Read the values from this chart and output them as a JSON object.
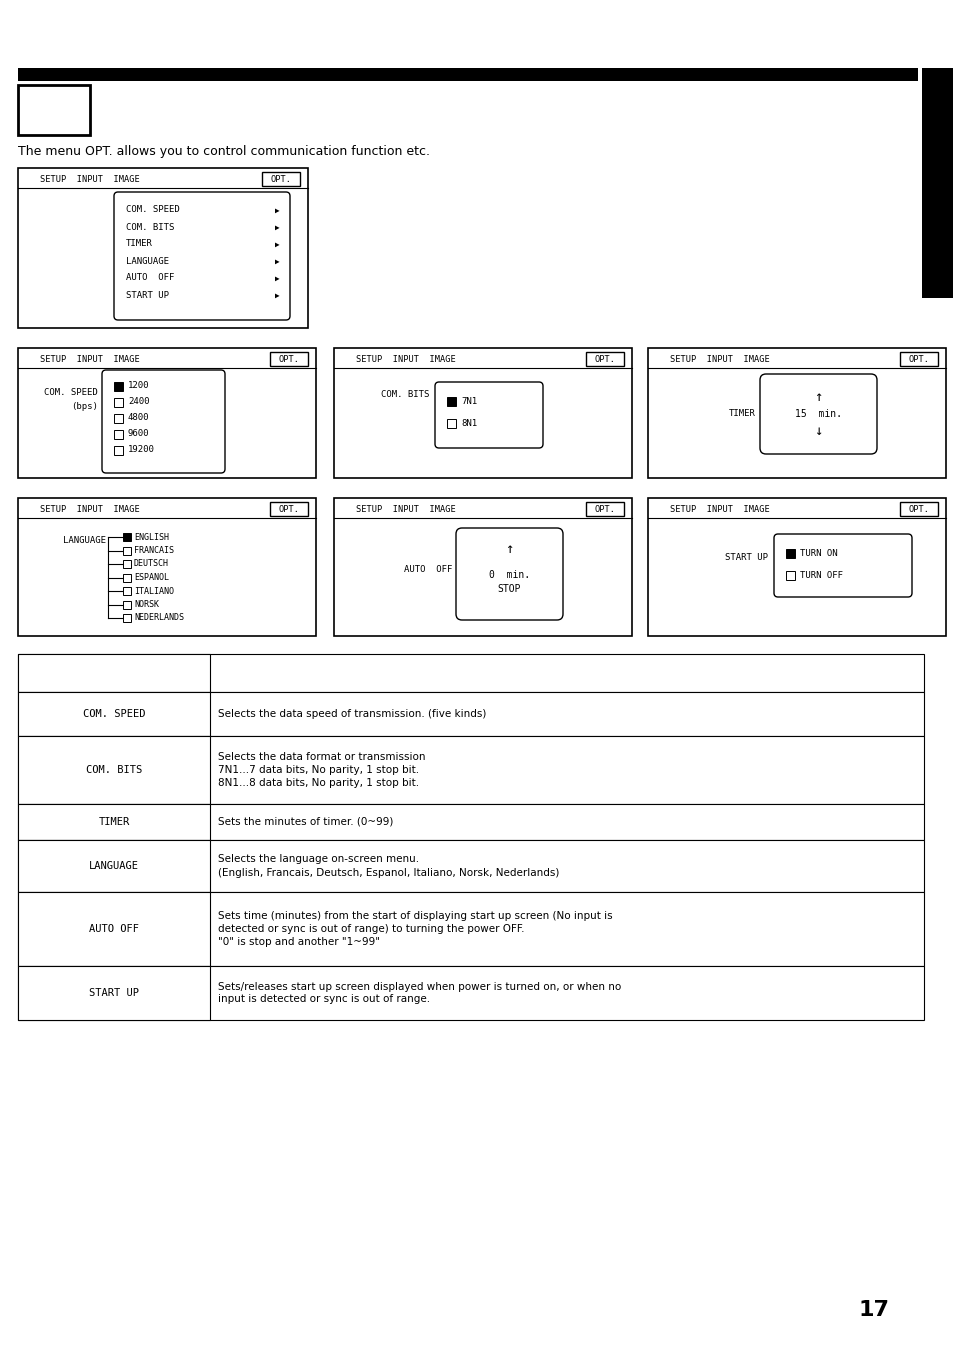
{
  "bg_color": "#ffffff",
  "page_number": "17",
  "intro_text": "The menu OPT. allows you to control communication function etc.",
  "table_rows": [
    {
      "label": "",
      "description": ""
    },
    {
      "label": "COM. SPEED",
      "description": "Selects the data speed of transmission. (five kinds)"
    },
    {
      "label": "COM. BITS",
      "description": "Selects the data format or transmission\n7N1...7 data bits, No parity, 1 stop bit.\n8N1...8 data bits, No parity, 1 stop bit."
    },
    {
      "label": "TIMER",
      "description": "Sets the minutes of timer. (0~99)"
    },
    {
      "label": "LANGUAGE",
      "description": "Selects the language on-screen menu.\n(English, Francais, Deutsch, Espanol, Italiano, Norsk, Nederlands)"
    },
    {
      "label": "AUTO OFF",
      "description": "Sets time (minutes) from the start of displaying start up screen (No input is\ndetected or sync is out of range) to turning the power OFF.\n\"0\" is stop and another \"1~99\""
    },
    {
      "label": "START UP",
      "description": "Sets/releases start up screen displayed when power is turned on, or when no\ninput is detected or sync is out of range."
    }
  ],
  "speeds": [
    "1200",
    "2400",
    "4800",
    "9600",
    "19200"
  ],
  "bits": [
    "7N1",
    "8N1"
  ],
  "languages": [
    "ENGLISH",
    "FRANCAIS",
    "DEUTSCH",
    "ESPANOL",
    "ITALIANO",
    "NORSK",
    "NEDERLANDS"
  ]
}
